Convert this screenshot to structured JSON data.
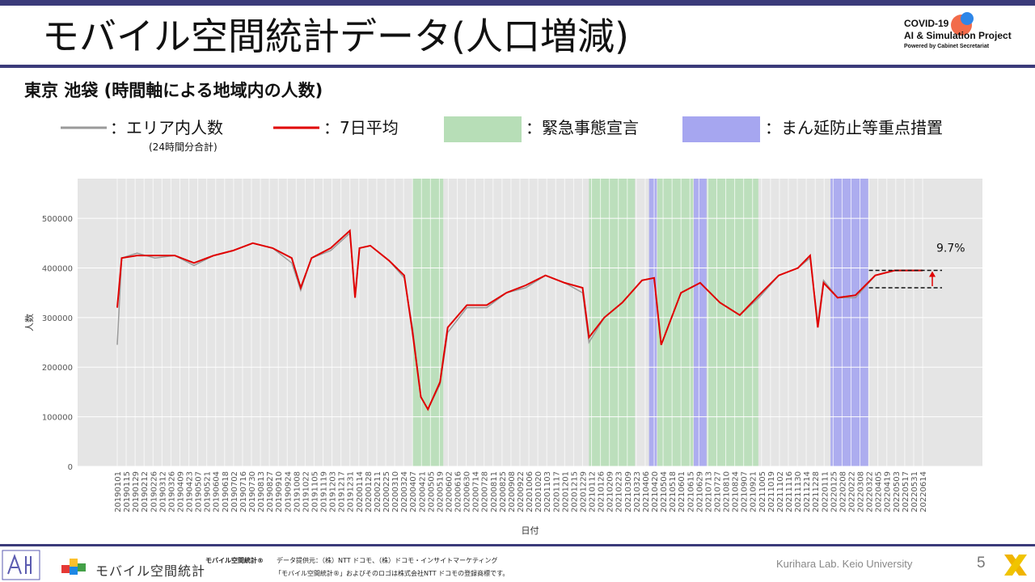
{
  "header": {
    "title": "モバイル空間統計データ(人口増減)",
    "project_line1": "COVID-19",
    "project_line2": "AI & Simulation Project",
    "project_line3": "Powered by Cabinet Secretariat"
  },
  "subtitle": "東京 池袋 (時間軸による地域内の人数)",
  "legend": {
    "area_label": "：エリア内人数",
    "area_note": "(24時間分合計)",
    "avg_label": "：7日平均",
    "emergency_label": "：緊急事態宣言",
    "quasi_label": "：まん延防止等重点措置"
  },
  "colors": {
    "raw": "#9a9a9a",
    "avg": "#e00000",
    "emergency": "#b7deb7",
    "quasi": "#a6a6f0",
    "panel": "#e5e5e5",
    "brand": "#3b3b7a"
  },
  "chart_data": {
    "type": "line",
    "xlabel": "日付",
    "ylabel": "人数",
    "ylim": [
      0,
      580000
    ],
    "yticks": [
      0,
      100000,
      200000,
      300000,
      400000,
      500000
    ],
    "ytick_labels": [
      "0",
      "100000",
      "200000",
      "300000",
      "400000",
      "500000"
    ],
    "x_tick_labels": [
      "20190101",
      "20190115",
      "20190129",
      "20190212",
      "20190226",
      "20190312",
      "20190326",
      "20190409",
      "20190423",
      "20190507",
      "20190521",
      "20190604",
      "20190618",
      "20190702",
      "20190716",
      "20190730",
      "20190813",
      "20190827",
      "20190910",
      "20190924",
      "20191008",
      "20191022",
      "20191105",
      "20191119",
      "20191203",
      "20191217",
      "20191231",
      "20200114",
      "20200128",
      "20200211",
      "20200225",
      "20200310",
      "20200324",
      "20200407",
      "20200421",
      "20200505",
      "20200519",
      "20200602",
      "20200616",
      "20200630",
      "20200714",
      "20200728",
      "20200811",
      "20200825",
      "20200908",
      "20200922",
      "20201006",
      "20201020",
      "20201103",
      "20201117",
      "20201201",
      "20201215",
      "20201229",
      "20210112",
      "20210126",
      "20210209",
      "20210223",
      "20210309",
      "20210323",
      "20210406",
      "20210420",
      "20210504",
      "20210518",
      "20210601",
      "20210615",
      "20210629",
      "20210713",
      "20210727",
      "20210810",
      "20210824",
      "20210907",
      "20210921",
      "20211005",
      "20211019",
      "20211102",
      "20211116",
      "20211130",
      "20211214",
      "20211228",
      "20220111",
      "20220125",
      "20220208",
      "20220222",
      "20220308",
      "20220322",
      "20220405",
      "20220419",
      "20220503",
      "20220517",
      "20220531",
      "20220614"
    ],
    "series": [
      {
        "name": "エリア内人数",
        "points": [
          [
            "20190101",
            245000
          ],
          [
            "20190108",
            420000
          ],
          [
            "20190201",
            430000
          ],
          [
            "20190301",
            420000
          ],
          [
            "20190401",
            425000
          ],
          [
            "20190501",
            405000
          ],
          [
            "20190601",
            425000
          ],
          [
            "20190701",
            435000
          ],
          [
            "20190801",
            450000
          ],
          [
            "20190901",
            440000
          ],
          [
            "20191001",
            410000
          ],
          [
            "20191015",
            355000
          ],
          [
            "20191101",
            420000
          ],
          [
            "20191201",
            435000
          ],
          [
            "20191231",
            470000
          ],
          [
            "20200108",
            340000
          ],
          [
            "20200115",
            440000
          ],
          [
            "20200201",
            445000
          ],
          [
            "20200301",
            415000
          ],
          [
            "20200325",
            380000
          ],
          [
            "20200407",
            280000
          ],
          [
            "20200420",
            140000
          ],
          [
            "20200501",
            115000
          ],
          [
            "20200520",
            165000
          ],
          [
            "20200601",
            270000
          ],
          [
            "20200701",
            320000
          ],
          [
            "20200801",
            320000
          ],
          [
            "20200901",
            350000
          ],
          [
            "20201001",
            360000
          ],
          [
            "20201101",
            385000
          ],
          [
            "20201201",
            370000
          ],
          [
            "20201229",
            350000
          ],
          [
            "20210108",
            250000
          ],
          [
            "20210201",
            300000
          ],
          [
            "20210301",
            330000
          ],
          [
            "20210401",
            375000
          ],
          [
            "20210420",
            380000
          ],
          [
            "20210501",
            245000
          ],
          [
            "20210601",
            350000
          ],
          [
            "20210701",
            370000
          ],
          [
            "20210801",
            330000
          ],
          [
            "20210901",
            305000
          ],
          [
            "20211001",
            340000
          ],
          [
            "20211101",
            385000
          ],
          [
            "20211201",
            400000
          ],
          [
            "20211220",
            420000
          ],
          [
            "20220101",
            290000
          ],
          [
            "20220110",
            375000
          ],
          [
            "20220201",
            340000
          ],
          [
            "20220301",
            340000
          ],
          [
            "20220401",
            385000
          ],
          [
            "20220501",
            395000
          ],
          [
            "20220614",
            395000
          ]
        ]
      },
      {
        "name": "7日平均",
        "points": [
          [
            "20190101",
            320000
          ],
          [
            "20190108",
            420000
          ],
          [
            "20190201",
            425000
          ],
          [
            "20190301",
            425000
          ],
          [
            "20190401",
            425000
          ],
          [
            "20190501",
            410000
          ],
          [
            "20190601",
            425000
          ],
          [
            "20190701",
            435000
          ],
          [
            "20190801",
            450000
          ],
          [
            "20190901",
            440000
          ],
          [
            "20191001",
            420000
          ],
          [
            "20191015",
            360000
          ],
          [
            "20191101",
            420000
          ],
          [
            "20191201",
            440000
          ],
          [
            "20191231",
            475000
          ],
          [
            "20200108",
            340000
          ],
          [
            "20200115",
            440000
          ],
          [
            "20200201",
            445000
          ],
          [
            "20200301",
            415000
          ],
          [
            "20200325",
            385000
          ],
          [
            "20200407",
            270000
          ],
          [
            "20200420",
            140000
          ],
          [
            "20200501",
            115000
          ],
          [
            "20200520",
            170000
          ],
          [
            "20200601",
            280000
          ],
          [
            "20200701",
            325000
          ],
          [
            "20200801",
            325000
          ],
          [
            "20200901",
            350000
          ],
          [
            "20201001",
            365000
          ],
          [
            "20201101",
            385000
          ],
          [
            "20201201",
            370000
          ],
          [
            "20201229",
            360000
          ],
          [
            "20210108",
            260000
          ],
          [
            "20210201",
            300000
          ],
          [
            "20210301",
            330000
          ],
          [
            "20210401",
            375000
          ],
          [
            "20210420",
            380000
          ],
          [
            "20210501",
            245000
          ],
          [
            "20210601",
            350000
          ],
          [
            "20210701",
            370000
          ],
          [
            "20210801",
            330000
          ],
          [
            "20210901",
            305000
          ],
          [
            "20211001",
            345000
          ],
          [
            "20211101",
            385000
          ],
          [
            "20211201",
            400000
          ],
          [
            "20211220",
            425000
          ],
          [
            "20220101",
            280000
          ],
          [
            "20220110",
            370000
          ],
          [
            "20220201",
            340000
          ],
          [
            "20220301",
            345000
          ],
          [
            "20220401",
            385000
          ],
          [
            "20220501",
            395000
          ],
          [
            "20220614",
            395000
          ]
        ]
      }
    ],
    "emergency_periods": [
      [
        "20200407",
        "20200525"
      ],
      [
        "20210108",
        "20210321"
      ],
      [
        "20210425",
        "20210620"
      ],
      [
        "20210712",
        "20210930"
      ]
    ],
    "quasi_periods": [
      [
        "20210412",
        "20210424"
      ],
      [
        "20210621",
        "20210711"
      ],
      [
        "20220121",
        "20220321"
      ]
    ],
    "annotation": "9.7%"
  },
  "footer": {
    "mobile_logo_text": "モバイル空間統計",
    "mobile_small_title": "モバイル空間統計®",
    "provider": "データ提供元：（株）NTT ドコモ、（株）ドコモ・インサイトマーケティング",
    "trademark": "「モバイル空間統計®」およびそのロゴは株式会社NTT ドコモの登録商標です。",
    "lab": "Kurihara Lab. Keio University",
    "page_number": "5"
  }
}
